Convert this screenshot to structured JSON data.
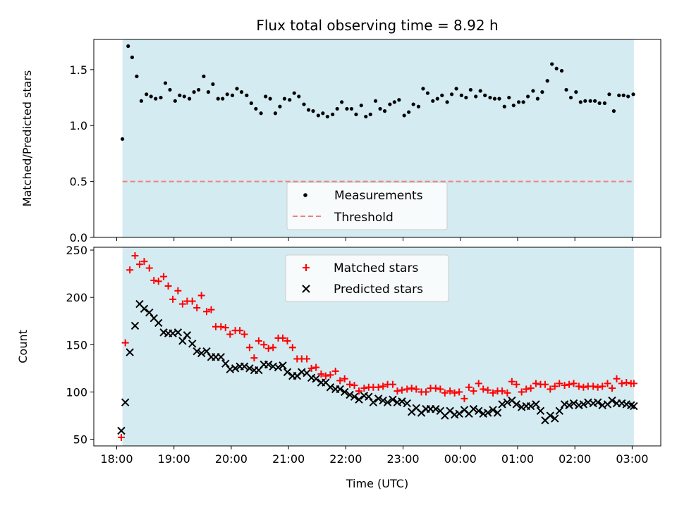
{
  "chart_data": [
    {
      "type": "scatter",
      "title": "Flux total observing time = 8.92 h",
      "xlabel": "",
      "ylabel": "Matched/Predicted stars",
      "ylim": [
        0,
        1.77
      ],
      "yticks": [
        0.0,
        0.5,
        1.0,
        1.5
      ],
      "ytick_labels": [
        "0.0",
        "0.5",
        "1.0",
        "1.5"
      ],
      "grid": false,
      "legend_position": "bottom-center",
      "observing_window": {
        "start_hour": 18.1,
        "end_hour": 27.03,
        "color": "#d4ebf1"
      },
      "series": [
        {
          "name": "Measurements",
          "marker": "dot",
          "color": "#000000",
          "x": [
            18.1,
            18.2,
            18.27,
            18.35,
            18.43,
            18.52,
            18.6,
            18.68,
            18.77,
            18.85,
            18.93,
            19.02,
            19.1,
            19.18,
            19.27,
            19.35,
            19.43,
            19.52,
            19.6,
            19.68,
            19.77,
            19.85,
            19.93,
            20.02,
            20.1,
            20.18,
            20.27,
            20.35,
            20.43,
            20.52,
            20.6,
            20.68,
            20.77,
            20.85,
            20.93,
            21.02,
            21.1,
            21.18,
            21.27,
            21.35,
            21.43,
            21.52,
            21.6,
            21.68,
            21.77,
            21.85,
            21.93,
            22.02,
            22.1,
            22.18,
            22.27,
            22.35,
            22.43,
            22.52,
            22.6,
            22.68,
            22.77,
            22.85,
            22.93,
            23.02,
            23.1,
            23.18,
            23.27,
            23.35,
            23.43,
            23.52,
            23.6,
            23.68,
            23.77,
            23.85,
            23.93,
            24.02,
            24.1,
            24.18,
            24.27,
            24.35,
            24.43,
            24.52,
            24.6,
            24.68,
            24.77,
            24.85,
            24.93,
            25.02,
            25.1,
            25.18,
            25.27,
            25.35,
            25.43,
            25.52,
            25.6,
            25.68,
            25.77,
            25.85,
            25.93,
            26.02,
            26.1,
            26.18,
            26.27,
            26.35,
            26.43,
            26.52,
            26.6,
            26.68,
            26.77,
            26.85,
            26.93,
            27.02
          ],
          "y": [
            0.88,
            1.71,
            1.61,
            1.44,
            1.22,
            1.28,
            1.26,
            1.24,
            1.25,
            1.38,
            1.32,
            1.22,
            1.27,
            1.26,
            1.24,
            1.3,
            1.32,
            1.44,
            1.3,
            1.37,
            1.24,
            1.24,
            1.28,
            1.27,
            1.33,
            1.3,
            1.27,
            1.2,
            1.15,
            1.11,
            1.26,
            1.24,
            1.11,
            1.17,
            1.24,
            1.23,
            1.29,
            1.26,
            1.19,
            1.14,
            1.13,
            1.09,
            1.11,
            1.08,
            1.1,
            1.15,
            1.21,
            1.15,
            1.15,
            1.1,
            1.18,
            1.08,
            1.1,
            1.22,
            1.15,
            1.13,
            1.19,
            1.21,
            1.23,
            1.09,
            1.12,
            1.19,
            1.17,
            1.33,
            1.29,
            1.22,
            1.24,
            1.27,
            1.21,
            1.28,
            1.33,
            1.27,
            1.25,
            1.32,
            1.26,
            1.31,
            1.27,
            1.25,
            1.24,
            1.24,
            1.17,
            1.25,
            1.18,
            1.21,
            1.21,
            1.26,
            1.31,
            1.24,
            1.3,
            1.4,
            1.55,
            1.51,
            1.49,
            1.32,
            1.25,
            1.3,
            1.21,
            1.22,
            1.22,
            1.22,
            1.2,
            1.2,
            1.28,
            1.13,
            1.27,
            1.27,
            1.26,
            1.28
          ]
        },
        {
          "name": "Threshold",
          "marker": "dashed-line",
          "color": "#f08080",
          "x": [
            18.1,
            27.03
          ],
          "y": [
            0.5,
            0.5
          ]
        }
      ]
    },
    {
      "type": "scatter",
      "title": "",
      "xlabel": "Time (UTC)",
      "ylabel": "Count",
      "ylim": [
        43,
        253
      ],
      "yticks": [
        50,
        100,
        150,
        200,
        250
      ],
      "ytick_labels": [
        "50",
        "100",
        "150",
        "200",
        "250"
      ],
      "xlim": [
        17.6,
        27.5
      ],
      "xticks": [
        18,
        19,
        20,
        21,
        22,
        23,
        24,
        25,
        26,
        27
      ],
      "xtick_labels": [
        "18:00",
        "19:00",
        "20:00",
        "21:00",
        "22:00",
        "23:00",
        "00:00",
        "01:00",
        "02:00",
        "03:00"
      ],
      "grid": false,
      "legend_position": "top-center",
      "observing_window": {
        "start_hour": 18.1,
        "end_hour": 27.03,
        "color": "#d4ebf1"
      },
      "series": [
        {
          "name": "Matched stars",
          "marker": "plus",
          "color": "#ff0000",
          "x": [
            18.08,
            18.15,
            18.23,
            18.32,
            18.4,
            18.48,
            18.57,
            18.65,
            18.73,
            18.82,
            18.9,
            18.98,
            19.07,
            19.15,
            19.23,
            19.32,
            19.4,
            19.48,
            19.57,
            19.65,
            19.73,
            19.82,
            19.9,
            19.98,
            20.07,
            20.15,
            20.23,
            20.32,
            20.4,
            20.48,
            20.57,
            20.65,
            20.73,
            20.82,
            20.9,
            20.98,
            21.07,
            21.15,
            21.23,
            21.32,
            21.4,
            21.48,
            21.57,
            21.65,
            21.73,
            21.82,
            21.9,
            21.98,
            22.07,
            22.15,
            22.23,
            22.32,
            22.4,
            22.48,
            22.57,
            22.65,
            22.73,
            22.82,
            22.9,
            22.98,
            23.07,
            23.15,
            23.23,
            23.32,
            23.4,
            23.48,
            23.57,
            23.65,
            23.73,
            23.82,
            23.9,
            23.98,
            24.07,
            24.15,
            24.23,
            24.32,
            24.4,
            24.48,
            24.57,
            24.65,
            24.73,
            24.82,
            24.9,
            24.98,
            25.07,
            25.15,
            25.23,
            25.32,
            25.4,
            25.48,
            25.57,
            25.65,
            25.73,
            25.82,
            25.9,
            25.98,
            26.07,
            26.15,
            26.23,
            26.32,
            26.4,
            26.48,
            26.57,
            26.65,
            26.73,
            26.82,
            26.9,
            26.98,
            27.03
          ],
          "y": [
            52,
            152,
            229,
            244,
            235,
            238,
            231,
            218,
            217,
            222,
            212,
            198,
            207,
            193,
            196,
            196,
            189,
            202,
            185,
            187,
            169,
            169,
            168,
            161,
            165,
            165,
            161,
            147,
            136,
            154,
            150,
            146,
            147,
            157,
            157,
            154,
            147,
            135,
            135,
            135,
            125,
            126,
            119,
            117,
            118,
            122,
            112,
            114,
            108,
            107,
            101,
            104,
            105,
            105,
            105,
            106,
            108,
            108,
            101,
            102,
            103,
            104,
            103,
            100,
            100,
            104,
            104,
            103,
            99,
            101,
            99,
            100,
            93,
            105,
            101,
            109,
            103,
            102,
            99,
            101,
            101,
            99,
            111,
            108,
            100,
            103,
            104,
            109,
            108,
            108,
            103,
            106,
            109,
            107,
            108,
            109,
            106,
            105,
            106,
            106,
            105,
            106,
            109,
            104,
            114,
            109,
            110,
            109,
            109
          ]
        },
        {
          "name": "Predicted stars",
          "marker": "x",
          "color": "#000000",
          "x": [
            18.08,
            18.15,
            18.23,
            18.32,
            18.4,
            18.48,
            18.57,
            18.65,
            18.73,
            18.82,
            18.9,
            18.98,
            19.07,
            19.15,
            19.23,
            19.32,
            19.4,
            19.48,
            19.57,
            19.65,
            19.73,
            19.82,
            19.9,
            19.98,
            20.07,
            20.15,
            20.23,
            20.32,
            20.4,
            20.48,
            20.57,
            20.65,
            20.73,
            20.82,
            20.9,
            20.98,
            21.07,
            21.15,
            21.23,
            21.32,
            21.4,
            21.48,
            21.57,
            21.65,
            21.73,
            21.82,
            21.9,
            21.98,
            22.07,
            22.15,
            22.23,
            22.32,
            22.4,
            22.48,
            22.57,
            22.65,
            22.73,
            22.82,
            22.9,
            22.98,
            23.07,
            23.15,
            23.23,
            23.32,
            23.4,
            23.48,
            23.57,
            23.65,
            23.73,
            23.82,
            23.9,
            23.98,
            24.07,
            24.15,
            24.23,
            24.32,
            24.4,
            24.48,
            24.57,
            24.65,
            24.73,
            24.82,
            24.9,
            24.98,
            25.07,
            25.15,
            25.23,
            25.32,
            25.4,
            25.48,
            25.57,
            25.65,
            25.73,
            25.82,
            25.9,
            25.98,
            26.07,
            26.15,
            26.23,
            26.32,
            26.4,
            26.48,
            26.57,
            26.65,
            26.73,
            26.82,
            26.9,
            26.98,
            27.03
          ],
          "y": [
            59,
            89,
            142,
            170,
            193,
            188,
            184,
            178,
            173,
            163,
            162,
            162,
            163,
            154,
            160,
            151,
            143,
            141,
            143,
            137,
            137,
            137,
            130,
            124,
            125,
            127,
            127,
            125,
            123,
            123,
            129,
            129,
            127,
            126,
            128,
            121,
            117,
            117,
            121,
            120,
            115,
            114,
            110,
            110,
            105,
            103,
            103,
            100,
            97,
            95,
            92,
            96,
            95,
            89,
            93,
            91,
            89,
            92,
            89,
            90,
            88,
            79,
            83,
            78,
            82,
            82,
            82,
            80,
            75,
            80,
            76,
            77,
            81,
            77,
            82,
            80,
            77,
            78,
            81,
            78,
            87,
            89,
            91,
            87,
            84,
            85,
            85,
            87,
            80,
            70,
            75,
            72,
            80,
            87,
            86,
            88,
            86,
            87,
            89,
            88,
            89,
            86,
            87,
            91,
            88,
            88,
            87,
            86,
            85
          ]
        }
      ]
    }
  ]
}
